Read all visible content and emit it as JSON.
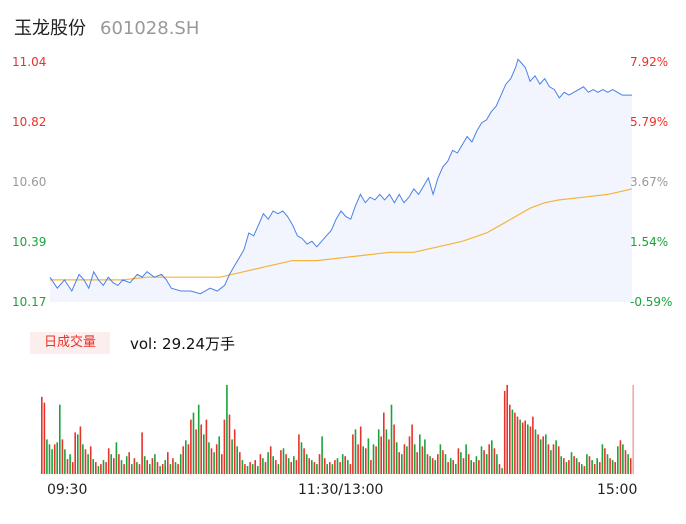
{
  "header": {
    "name": "玉龙股份",
    "code": "601028.SH"
  },
  "tab_label": "日成交量",
  "volume_label": "vol: 29.24万手",
  "colors": {
    "up": "#e8322b",
    "down": "#1aa33b",
    "neutral": "#999999",
    "price_line": "#4a80e8",
    "avg_line": "#f5b43a",
    "area_fill": "#f2f5fd"
  },
  "chart_data": {
    "type": "line",
    "price_axis": {
      "ylim": [
        10.17,
        11.04
      ],
      "ticks": [
        "11.04",
        "10.82",
        "10.60",
        "10.39",
        "10.17"
      ],
      "tick_colors": [
        "#e8322b",
        "#e8322b",
        "#999999",
        "#1aa33b",
        "#1aa33b"
      ]
    },
    "pct_axis": {
      "ticks": [
        "7.92%",
        "5.79%",
        "3.67%",
        "1.54%",
        "-0.59%"
      ],
      "tick_colors": [
        "#e8322b",
        "#e8322b",
        "#999999",
        "#1aa33b",
        "#1aa33b"
      ]
    },
    "x_ticks": [
      "09:30",
      "11:30/13:00",
      "15:00"
    ],
    "total_minutes": 240,
    "price_series": [
      [
        0,
        10.26
      ],
      [
        3,
        10.22
      ],
      [
        6,
        10.25
      ],
      [
        9,
        10.21
      ],
      [
        12,
        10.27
      ],
      [
        14,
        10.25
      ],
      [
        16,
        10.22
      ],
      [
        18,
        10.28
      ],
      [
        20,
        10.25
      ],
      [
        22,
        10.23
      ],
      [
        24,
        10.26
      ],
      [
        26,
        10.24
      ],
      [
        28,
        10.23
      ],
      [
        30,
        10.25
      ],
      [
        33,
        10.24
      ],
      [
        36,
        10.27
      ],
      [
        38,
        10.26
      ],
      [
        40,
        10.28
      ],
      [
        43,
        10.26
      ],
      [
        46,
        10.27
      ],
      [
        48,
        10.25
      ],
      [
        50,
        10.22
      ],
      [
        54,
        10.21
      ],
      [
        58,
        10.21
      ],
      [
        62,
        10.2
      ],
      [
        66,
        10.22
      ],
      [
        69,
        10.21
      ],
      [
        72,
        10.23
      ],
      [
        74,
        10.27
      ],
      [
        76,
        10.3
      ],
      [
        78,
        10.33
      ],
      [
        80,
        10.36
      ],
      [
        82,
        10.42
      ],
      [
        84,
        10.41
      ],
      [
        86,
        10.45
      ],
      [
        88,
        10.49
      ],
      [
        90,
        10.47
      ],
      [
        92,
        10.5
      ],
      [
        94,
        10.49
      ],
      [
        96,
        10.5
      ],
      [
        98,
        10.48
      ],
      [
        100,
        10.45
      ],
      [
        102,
        10.41
      ],
      [
        104,
        10.4
      ],
      [
        106,
        10.38
      ],
      [
        108,
        10.39
      ],
      [
        110,
        10.37
      ],
      [
        112,
        10.39
      ],
      [
        114,
        10.41
      ],
      [
        116,
        10.43
      ],
      [
        118,
        10.47
      ],
      [
        120,
        10.5
      ],
      [
        122,
        10.48
      ],
      [
        124,
        10.47
      ],
      [
        126,
        10.52
      ],
      [
        128,
        10.56
      ],
      [
        130,
        10.53
      ],
      [
        132,
        10.55
      ],
      [
        134,
        10.54
      ],
      [
        136,
        10.56
      ],
      [
        138,
        10.54
      ],
      [
        140,
        10.56
      ],
      [
        142,
        10.53
      ],
      [
        144,
        10.56
      ],
      [
        146,
        10.53
      ],
      [
        148,
        10.55
      ],
      [
        150,
        10.58
      ],
      [
        152,
        10.56
      ],
      [
        154,
        10.59
      ],
      [
        156,
        10.62
      ],
      [
        158,
        10.56
      ],
      [
        160,
        10.62
      ],
      [
        162,
        10.66
      ],
      [
        164,
        10.68
      ],
      [
        166,
        10.72
      ],
      [
        168,
        10.71
      ],
      [
        170,
        10.74
      ],
      [
        172,
        10.77
      ],
      [
        174,
        10.75
      ],
      [
        176,
        10.79
      ],
      [
        178,
        10.82
      ],
      [
        180,
        10.83
      ],
      [
        182,
        10.86
      ],
      [
        184,
        10.88
      ],
      [
        186,
        10.92
      ],
      [
        188,
        10.96
      ],
      [
        190,
        10.98
      ],
      [
        192,
        11.02
      ],
      [
        193,
        11.05
      ],
      [
        194,
        11.04
      ],
      [
        196,
        11.02
      ],
      [
        198,
        10.97
      ],
      [
        200,
        10.99
      ],
      [
        202,
        10.96
      ],
      [
        204,
        10.98
      ],
      [
        206,
        10.95
      ],
      [
        208,
        10.94
      ],
      [
        210,
        10.91
      ],
      [
        212,
        10.93
      ],
      [
        214,
        10.92
      ],
      [
        216,
        10.93
      ],
      [
        218,
        10.94
      ],
      [
        220,
        10.95
      ],
      [
        222,
        10.93
      ],
      [
        224,
        10.94
      ],
      [
        226,
        10.93
      ],
      [
        228,
        10.94
      ],
      [
        230,
        10.93
      ],
      [
        232,
        10.94
      ],
      [
        234,
        10.93
      ],
      [
        236,
        10.92
      ],
      [
        238,
        10.92
      ],
      [
        240,
        10.92
      ]
    ],
    "avg_series": [
      [
        0,
        10.25
      ],
      [
        10,
        10.25
      ],
      [
        20,
        10.25
      ],
      [
        30,
        10.25
      ],
      [
        40,
        10.26
      ],
      [
        50,
        10.26
      ],
      [
        60,
        10.26
      ],
      [
        70,
        10.26
      ],
      [
        75,
        10.27
      ],
      [
        80,
        10.28
      ],
      [
        90,
        10.3
      ],
      [
        100,
        10.32
      ],
      [
        110,
        10.32
      ],
      [
        120,
        10.33
      ],
      [
        130,
        10.34
      ],
      [
        140,
        10.35
      ],
      [
        150,
        10.35
      ],
      [
        160,
        10.37
      ],
      [
        170,
        10.39
      ],
      [
        180,
        10.42
      ],
      [
        186,
        10.45
      ],
      [
        192,
        10.48
      ],
      [
        198,
        10.51
      ],
      [
        204,
        10.53
      ],
      [
        210,
        10.54
      ],
      [
        220,
        10.55
      ],
      [
        230,
        10.56
      ],
      [
        240,
        10.58
      ]
    ],
    "volume_bars": [
      [
        0.78,
        1
      ],
      [
        0.72,
        1
      ],
      [
        0.35,
        0
      ],
      [
        0.3,
        0
      ],
      [
        0.25,
        0
      ],
      [
        0.3,
        1
      ],
      [
        0.32,
        0
      ],
      [
        0.7,
        0
      ],
      [
        0.35,
        1
      ],
      [
        0.25,
        0
      ],
      [
        0.15,
        1
      ],
      [
        0.2,
        0
      ],
      [
        0.12,
        1
      ],
      [
        0.42,
        1
      ],
      [
        0.4,
        0
      ],
      [
        0.48,
        1
      ],
      [
        0.3,
        0
      ],
      [
        0.25,
        1
      ],
      [
        0.2,
        0
      ],
      [
        0.28,
        1
      ],
      [
        0.15,
        0
      ],
      [
        0.12,
        1
      ],
      [
        0.08,
        0
      ],
      [
        0.1,
        1
      ],
      [
        0.14,
        0
      ],
      [
        0.12,
        1
      ],
      [
        0.26,
        1
      ],
      [
        0.2,
        0
      ],
      [
        0.16,
        1
      ],
      [
        0.32,
        0
      ],
      [
        0.2,
        1
      ],
      [
        0.14,
        0
      ],
      [
        0.1,
        1
      ],
      [
        0.18,
        0
      ],
      [
        0.22,
        1
      ],
      [
        0.1,
        0
      ],
      [
        0.16,
        1
      ],
      [
        0.12,
        0
      ],
      [
        0.1,
        1
      ],
      [
        0.42,
        1
      ],
      [
        0.18,
        0
      ],
      [
        0.14,
        1
      ],
      [
        0.1,
        0
      ],
      [
        0.16,
        1
      ],
      [
        0.2,
        0
      ],
      [
        0.12,
        1
      ],
      [
        0.08,
        0
      ],
      [
        0.1,
        1
      ],
      [
        0.14,
        0
      ],
      [
        0.22,
        1
      ],
      [
        0.1,
        0
      ],
      [
        0.16,
        1
      ],
      [
        0.12,
        0
      ],
      [
        0.1,
        1
      ],
      [
        0.2,
        0
      ],
      [
        0.28,
        1
      ],
      [
        0.34,
        0
      ],
      [
        0.3,
        1
      ],
      [
        0.55,
        1
      ],
      [
        0.62,
        0
      ],
      [
        0.45,
        1
      ],
      [
        0.7,
        0
      ],
      [
        0.5,
        1
      ],
      [
        0.4,
        0
      ],
      [
        0.55,
        1
      ],
      [
        0.32,
        0
      ],
      [
        0.26,
        1
      ],
      [
        0.22,
        0
      ],
      [
        0.3,
        1
      ],
      [
        0.38,
        0
      ],
      [
        0.2,
        1
      ],
      [
        0.55,
        1
      ],
      [
        0.9,
        0
      ],
      [
        0.6,
        1
      ],
      [
        0.35,
        0
      ],
      [
        0.45,
        1
      ],
      [
        0.28,
        0
      ],
      [
        0.22,
        1
      ],
      [
        0.14,
        0
      ],
      [
        0.1,
        1
      ],
      [
        0.08,
        0
      ],
      [
        0.12,
        1
      ],
      [
        0.1,
        0
      ],
      [
        0.14,
        1
      ],
      [
        0.08,
        0
      ],
      [
        0.2,
        1
      ],
      [
        0.16,
        0
      ],
      [
        0.12,
        1
      ],
      [
        0.22,
        0
      ],
      [
        0.28,
        1
      ],
      [
        0.18,
        0
      ],
      [
        0.14,
        1
      ],
      [
        0.1,
        0
      ],
      [
        0.24,
        1
      ],
      [
        0.26,
        0
      ],
      [
        0.2,
        1
      ],
      [
        0.16,
        0
      ],
      [
        0.12,
        1
      ],
      [
        0.18,
        0
      ],
      [
        0.14,
        1
      ],
      [
        0.4,
        1
      ],
      [
        0.32,
        0
      ],
      [
        0.26,
        1
      ],
      [
        0.2,
        0
      ],
      [
        0.16,
        1
      ],
      [
        0.14,
        0
      ],
      [
        0.12,
        1
      ],
      [
        0.1,
        0
      ],
      [
        0.2,
        1
      ],
      [
        0.38,
        0
      ],
      [
        0.16,
        1
      ],
      [
        0.1,
        0
      ],
      [
        0.12,
        1
      ],
      [
        0.1,
        0
      ],
      [
        0.14,
        1
      ],
      [
        0.16,
        0
      ],
      [
        0.12,
        1
      ],
      [
        0.2,
        0
      ],
      [
        0.18,
        1
      ],
      [
        0.14,
        0
      ],
      [
        0.1,
        1
      ],
      [
        0.4,
        1
      ],
      [
        0.45,
        0
      ],
      [
        0.3,
        1
      ],
      [
        0.48,
        1
      ],
      [
        0.28,
        0
      ],
      [
        0.26,
        1
      ],
      [
        0.36,
        0
      ],
      [
        0.14,
        1
      ],
      [
        0.3,
        0
      ],
      [
        0.28,
        1
      ],
      [
        0.45,
        0
      ],
      [
        0.38,
        1
      ],
      [
        0.62,
        1
      ],
      [
        0.45,
        0
      ],
      [
        0.35,
        1
      ],
      [
        0.7,
        0
      ],
      [
        0.5,
        1
      ],
      [
        0.32,
        0
      ],
      [
        0.22,
        1
      ],
      [
        0.2,
        0
      ],
      [
        0.3,
        1
      ],
      [
        0.28,
        0
      ],
      [
        0.38,
        1
      ],
      [
        0.5,
        1
      ],
      [
        0.3,
        0
      ],
      [
        0.22,
        1
      ],
      [
        0.4,
        0
      ],
      [
        0.28,
        1
      ],
      [
        0.35,
        0
      ],
      [
        0.2,
        1
      ],
      [
        0.18,
        0
      ],
      [
        0.16,
        1
      ],
      [
        0.14,
        0
      ],
      [
        0.2,
        1
      ],
      [
        0.3,
        0
      ],
      [
        0.24,
        1
      ],
      [
        0.2,
        0
      ],
      [
        0.12,
        1
      ],
      [
        0.16,
        0
      ],
      [
        0.14,
        1
      ],
      [
        0.1,
        0
      ],
      [
        0.26,
        1
      ],
      [
        0.22,
        0
      ],
      [
        0.16,
        1
      ],
      [
        0.3,
        0
      ],
      [
        0.2,
        1
      ],
      [
        0.14,
        0
      ],
      [
        0.12,
        1
      ],
      [
        0.18,
        0
      ],
      [
        0.14,
        1
      ],
      [
        0.28,
        0
      ],
      [
        0.24,
        1
      ],
      [
        0.2,
        0
      ],
      [
        0.3,
        1
      ],
      [
        0.34,
        0
      ],
      [
        0.26,
        1
      ],
      [
        0.2,
        0
      ],
      [
        0.1,
        1
      ],
      [
        0.06,
        0
      ],
      [
        0.84,
        1
      ],
      [
        0.9,
        1
      ],
      [
        0.7,
        1
      ],
      [
        0.65,
        0
      ],
      [
        0.62,
        1
      ],
      [
        0.58,
        1
      ],
      [
        0.55,
        0
      ],
      [
        0.52,
        1
      ],
      [
        0.54,
        1
      ],
      [
        0.5,
        0
      ],
      [
        0.48,
        1
      ],
      [
        0.58,
        1
      ],
      [
        0.45,
        0
      ],
      [
        0.4,
        1
      ],
      [
        0.35,
        0
      ],
      [
        0.38,
        1
      ],
      [
        0.4,
        0
      ],
      [
        0.3,
        1
      ],
      [
        0.24,
        0
      ],
      [
        0.3,
        1
      ],
      [
        0.34,
        0
      ],
      [
        0.28,
        1
      ],
      [
        0.18,
        0
      ],
      [
        0.16,
        1
      ],
      [
        0.12,
        0
      ],
      [
        0.14,
        1
      ],
      [
        0.22,
        0
      ],
      [
        0.18,
        1
      ],
      [
        0.16,
        0
      ],
      [
        0.12,
        1
      ],
      [
        0.1,
        0
      ],
      [
        0.08,
        1
      ],
      [
        0.2,
        0
      ],
      [
        0.18,
        1
      ],
      [
        0.14,
        0
      ],
      [
        0.1,
        1
      ],
      [
        0.16,
        0
      ],
      [
        0.12,
        1
      ],
      [
        0.3,
        0
      ],
      [
        0.26,
        1
      ],
      [
        0.2,
        0
      ],
      [
        0.16,
        1
      ],
      [
        0.14,
        0
      ],
      [
        0.12,
        1
      ],
      [
        0.28,
        0
      ],
      [
        0.34,
        1
      ],
      [
        0.3,
        0
      ],
      [
        0.24,
        1
      ],
      [
        0.2,
        0
      ],
      [
        0.16,
        1
      ],
      [
        0.9,
        -1
      ]
    ]
  }
}
